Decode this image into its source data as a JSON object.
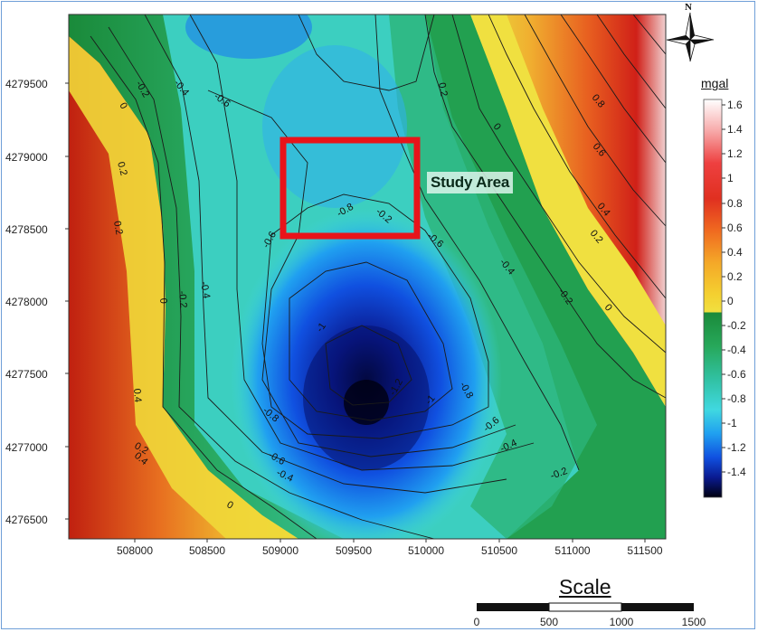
{
  "map": {
    "y_ticks": [
      "4279500",
      "4279000",
      "4278500",
      "4278000",
      "4277500",
      "4277000",
      "4276500"
    ],
    "x_ticks": [
      "508000",
      "508500",
      "509000",
      "509500",
      "510000",
      "510500",
      "511000",
      "511500"
    ],
    "contour_labels": [
      "-0.2",
      "-0.4",
      "-0.6",
      "0",
      "0.2",
      "0.2",
      "0.4",
      "0.2",
      "0",
      "-0.2",
      "-0.4",
      "-0.8",
      "-0.6",
      "-0.6",
      "-0.4",
      "-0.2",
      "0",
      "0.8",
      "0.6",
      "0.4",
      "0.2",
      "-1",
      "-1.2",
      "-1",
      "-0.8",
      "-0.8",
      "-0.6",
      "-0.4",
      "-0.6",
      "-0.4",
      "-0.2",
      "0",
      "0.4",
      "0.2",
      "0",
      "-0.2"
    ],
    "study_area_label": "Study Area",
    "study_area_color": "#e8141a"
  },
  "legend": {
    "unit": "mgal",
    "ticks": [
      "1.6",
      "1.4",
      "1.2",
      "1",
      "0.8",
      "0.6",
      "0.4",
      "0.2",
      "0",
      "-0.2",
      "-0.4",
      "-0.6",
      "-0.8",
      "-1",
      "-1.2",
      "-1.4"
    ],
    "colors": [
      "#ffffff",
      "#f7a8a8",
      "#ee4040",
      "#e03020",
      "#f06a20",
      "#f4a828",
      "#f4d030",
      "#f0e040",
      "#1a8a3a",
      "#27a85a",
      "#30c0a0",
      "#40d8e0",
      "#20a0f0",
      "#1050e0",
      "#0a1a90",
      "#000010"
    ]
  },
  "scale": {
    "title": "Scale",
    "ticks": [
      "0",
      "500",
      "1000",
      "1500"
    ]
  },
  "north": {
    "label": "N"
  }
}
